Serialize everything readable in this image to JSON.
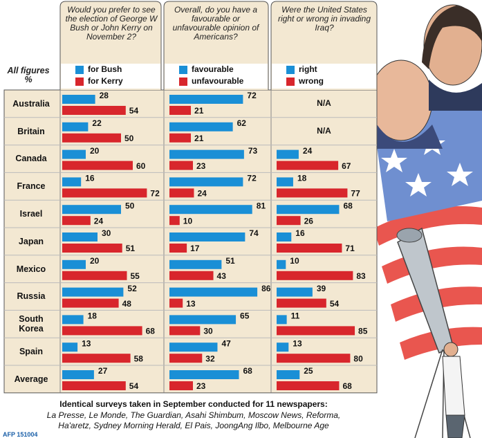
{
  "legend_note": "All figures %",
  "chart_data": [
    {
      "type": "hbar",
      "title": "Would you prefer to see the election of George W Bush or John Kerry on November 2?",
      "categories": [
        "Australia",
        "Britain",
        "Canada",
        "France",
        "Israel",
        "Japan",
        "Mexico",
        "Russia",
        "South Korea",
        "Spain",
        "Average"
      ],
      "xlim": [
        0,
        80
      ],
      "series": [
        {
          "name": "for Bush",
          "color": "#1a8fd6",
          "values": [
            28,
            22,
            20,
            16,
            50,
            30,
            20,
            52,
            18,
            13,
            27
          ]
        },
        {
          "name": "for Kerry",
          "color": "#d8262c",
          "values": [
            54,
            50,
            60,
            72,
            24,
            51,
            55,
            48,
            68,
            58,
            54
          ]
        }
      ]
    },
    {
      "type": "hbar",
      "title": "Overall, do you have a favourable or unfavourable opinion of Americans?",
      "xlim": [
        0,
        90
      ],
      "series": [
        {
          "name": "favourable",
          "color": "#1a8fd6",
          "values": [
            72,
            62,
            73,
            72,
            81,
            74,
            51,
            86,
            65,
            47,
            68
          ]
        },
        {
          "name": "unfavourable",
          "color": "#d8262c",
          "values": [
            21,
            21,
            23,
            24,
            10,
            17,
            43,
            13,
            30,
            32,
            23
          ]
        }
      ]
    },
    {
      "type": "hbar",
      "title": "Were the United States right or wrong in invading Iraq?",
      "xlim": [
        0,
        100
      ],
      "missing_label": "N/A",
      "series": [
        {
          "name": "right",
          "color": "#1a8fd6",
          "values": [
            null,
            null,
            24,
            18,
            68,
            16,
            10,
            39,
            11,
            13,
            25
          ]
        },
        {
          "name": "wrong",
          "color": "#d8262c",
          "values": [
            null,
            null,
            67,
            77,
            26,
            71,
            83,
            54,
            85,
            80,
            68
          ]
        }
      ]
    }
  ],
  "source": {
    "heading": "Identical surveys taken in September conducted for 11 newspapers:",
    "lines": [
      "La Presse, Le Monde, The Guardian, Asahi Shimbum, Moscow News, Reforma,",
      "Ha'aretz, Sydney Morning Herald, El Pais, JoongAng Ilbo, Melbourne Age"
    ]
  },
  "credit": "AFP 151004"
}
